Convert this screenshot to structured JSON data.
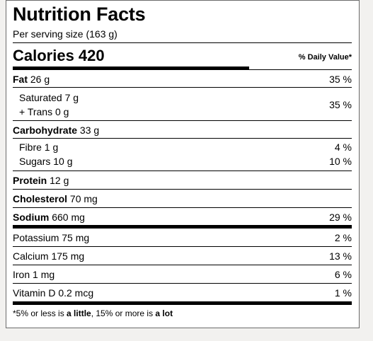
{
  "title": "Nutrition Facts",
  "serving": "Per serving size (163 g)",
  "calories": "Calories 420",
  "daily_value_header": "% Daily Value*",
  "rows": {
    "fat": {
      "label": "Fat",
      "amount": "26 g",
      "percent": "35 %"
    },
    "saturated": {
      "label": "Saturated 7 g"
    },
    "trans": {
      "label": "+ Trans 0 g"
    },
    "sat_trans_percent": "35 %",
    "carbohydrate": {
      "label": "Carbohydrate",
      "amount": "33 g"
    },
    "fibre": {
      "label": "Fibre 1 g",
      "percent": "4 %"
    },
    "sugars": {
      "label": "Sugars 10 g",
      "percent": "10 %"
    },
    "protein": {
      "label": "Protein",
      "amount": "12 g"
    },
    "cholesterol": {
      "label": "Cholesterol",
      "amount": "70 mg"
    },
    "sodium": {
      "label": "Sodium",
      "amount": "660 mg",
      "percent": "29 %"
    },
    "potassium": {
      "label": "Potassium 75 mg",
      "percent": "2 %"
    },
    "calcium": {
      "label": "Calcium 175 mg",
      "percent": "13 %"
    },
    "iron": {
      "label": "Iron 1 mg",
      "percent": "6 %"
    },
    "vitamin_d": {
      "label": "Vitamin D 0.2 mcg",
      "percent": "1 %"
    }
  },
  "footnote": {
    "part1": "*5% or less is ",
    "part2": "a little",
    "part3": ", 15% or more is ",
    "part4": "a lot"
  }
}
